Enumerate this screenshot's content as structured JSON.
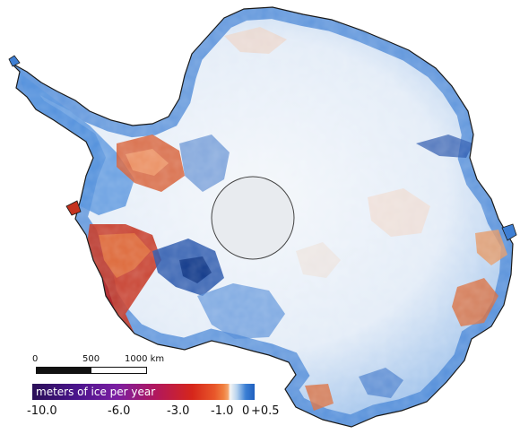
{
  "scale_bar": {
    "labels": [
      "0",
      "500",
      "1000 km"
    ]
  },
  "colorbar": {
    "title": "meters of ice per year",
    "ticks": [
      "-10.0",
      "-6.0",
      "-3.0",
      "-1.0",
      "0",
      "+0.5"
    ]
  },
  "colors": {
    "strong_loss": "#b31a1a",
    "loss": "#e06a3c",
    "neutral": "#eef3fa",
    "gain": "#3e7fd4",
    "strong_gain": "#1f4fa8",
    "pole_hole": "#e8ebef"
  }
}
